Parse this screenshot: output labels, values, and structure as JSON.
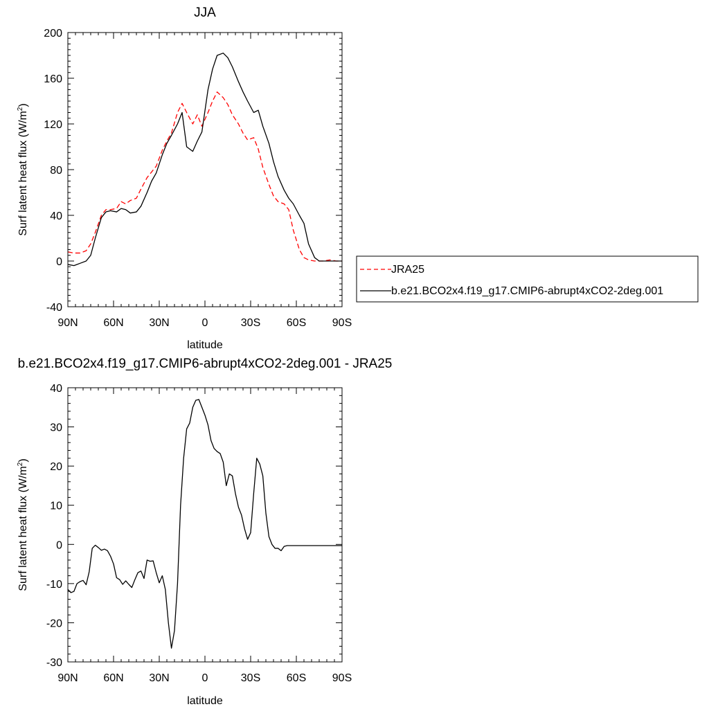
{
  "chart_data": [
    {
      "type": "line",
      "title": "JJA",
      "xlabel": "latitude",
      "ylabel": "Surf latent heat flux (W/m",
      "ylabel_sup": "2",
      "ylabel_tail": ")",
      "xlim": [
        90,
        -90
      ],
      "ylim": [
        -40,
        200
      ],
      "xticks": [
        {
          "v": 90,
          "label": "90N"
        },
        {
          "v": 60,
          "label": "60N"
        },
        {
          "v": 30,
          "label": "30N"
        },
        {
          "v": 0,
          "label": "0"
        },
        {
          "v": -30,
          "label": "30S"
        },
        {
          "v": -60,
          "label": "60S"
        },
        {
          "v": -90,
          "label": "90S"
        }
      ],
      "yticks": [
        -40,
        0,
        40,
        80,
        120,
        160,
        200
      ],
      "legend_position": "right",
      "series": [
        {
          "name": "JRA25",
          "color": "#ff0000",
          "dash": "dashed",
          "x": [
            90,
            86,
            82,
            78,
            75,
            72,
            68,
            65,
            62,
            58,
            55,
            52,
            49,
            45,
            42,
            38,
            35,
            32,
            28,
            25,
            22,
            18,
            15,
            12,
            8,
            5,
            2,
            -2,
            -5,
            -8,
            -12,
            -15,
            -18,
            -22,
            -25,
            -28,
            -32,
            -35,
            -38,
            -42,
            -45,
            -48,
            -52,
            -55,
            -58,
            -62,
            -65,
            -68,
            -72,
            -75,
            -78,
            -82,
            -86,
            -90
          ],
          "y": [
            8,
            7,
            7,
            9,
            15,
            25,
            40,
            45,
            45,
            46,
            52,
            50,
            53,
            55,
            63,
            73,
            78,
            83,
            97,
            105,
            112,
            130,
            138,
            130,
            120,
            128,
            118,
            130,
            140,
            148,
            143,
            137,
            128,
            120,
            112,
            106,
            108,
            98,
            82,
            67,
            57,
            52,
            50,
            45,
            27,
            10,
            3,
            1,
            0,
            0,
            0,
            1,
            0,
            0
          ]
        },
        {
          "name": "b.e21.BCO2x4.f19_g17.CMIP6-abrupt4xCO2-2deg.001",
          "color": "#000000",
          "dash": "solid",
          "x": [
            90,
            86,
            82,
            78,
            75,
            72,
            68,
            65,
            62,
            58,
            55,
            52,
            49,
            45,
            42,
            38,
            35,
            32,
            28,
            25,
            22,
            18,
            15,
            12,
            8,
            5,
            2,
            -2,
            -5,
            -8,
            -12,
            -15,
            -18,
            -22,
            -25,
            -28,
            -32,
            -35,
            -38,
            -42,
            -45,
            -48,
            -52,
            -55,
            -58,
            -62,
            -65,
            -68,
            -72,
            -75,
            -78,
            -82,
            -86,
            -90
          ],
          "y": [
            -3,
            -4,
            -2,
            0,
            5,
            20,
            38,
            43,
            44,
            43,
            46,
            45,
            42,
            43,
            48,
            60,
            70,
            77,
            93,
            103,
            110,
            120,
            130,
            100,
            96,
            105,
            113,
            150,
            168,
            180,
            182,
            178,
            170,
            157,
            148,
            140,
            130,
            132,
            118,
            103,
            87,
            74,
            62,
            55,
            50,
            40,
            33,
            15,
            3,
            0,
            0,
            0,
            0,
            0
          ]
        }
      ]
    },
    {
      "type": "line",
      "title": "b.e21.BCO2x4.f19_g17.CMIP6-abrupt4xCO2-2deg.001 - JRA25",
      "xlabel": "latitude",
      "ylabel": "Surf latent heat flux (W/m",
      "ylabel_sup": "2",
      "ylabel_tail": ")",
      "xlim": [
        90,
        -90
      ],
      "ylim": [
        -30,
        40
      ],
      "xticks": [
        {
          "v": 90,
          "label": "90N"
        },
        {
          "v": 60,
          "label": "60N"
        },
        {
          "v": 30,
          "label": "30N"
        },
        {
          "v": 0,
          "label": "0"
        },
        {
          "v": -30,
          "label": "30S"
        },
        {
          "v": -60,
          "label": "60S"
        },
        {
          "v": -90,
          "label": "90S"
        }
      ],
      "yticks": [
        -30,
        -20,
        -10,
        0,
        10,
        20,
        30,
        40
      ],
      "series": [
        {
          "color": "#000000",
          "dash": "solid",
          "x": [
            90,
            88,
            86,
            84,
            82,
            80,
            78,
            76,
            74,
            72,
            70,
            68,
            66,
            64,
            62,
            60,
            58,
            56,
            54,
            52,
            50,
            48,
            46,
            44,
            42,
            40,
            38,
            36,
            34,
            32,
            30,
            28,
            26,
            24,
            22,
            20,
            18,
            16,
            14,
            12,
            10,
            8,
            6,
            4,
            2,
            0,
            -2,
            -4,
            -6,
            -8,
            -10,
            -12,
            -14,
            -16,
            -18,
            -20,
            -22,
            -24,
            -26,
            -28,
            -30,
            -32,
            -34,
            -36,
            -38,
            -40,
            -42,
            -44,
            -46,
            -48,
            -50,
            -52,
            -54,
            -56,
            -58,
            -60,
            -62,
            -64,
            -66,
            -68,
            -70,
            -72,
            -74,
            -76,
            -78,
            -80,
            -82,
            -84,
            -86,
            -88,
            -90
          ],
          "y": [
            -11.5,
            -12.3,
            -12,
            -10,
            -9.5,
            -9.2,
            -10.3,
            -7,
            -1,
            -0.2,
            -0.8,
            -1.5,
            -1.2,
            -1.6,
            -3,
            -5,
            -8.5,
            -9,
            -10.2,
            -9.3,
            -10.2,
            -11,
            -9,
            -7.2,
            -6.8,
            -8.7,
            -4,
            -4.3,
            -4.2,
            -7.2,
            -9.8,
            -8,
            -11.5,
            -20,
            -26.5,
            -22,
            -10,
            10,
            22,
            29.5,
            31,
            35,
            36.8,
            37,
            35,
            33,
            30.5,
            26.5,
            24.5,
            23.7,
            23.2,
            21,
            15,
            18,
            17.5,
            13,
            9.5,
            7.5,
            4,
            1.3,
            3,
            13,
            22,
            20.5,
            17.5,
            8,
            2,
            0,
            -1,
            -1,
            -1.6,
            -0.5,
            -0.3,
            -0.3,
            -0.3,
            -0.3,
            -0.3,
            -0.3,
            -0.3,
            -0.3,
            -0.3,
            -0.3,
            -0.3,
            -0.3,
            -0.3,
            -0.3,
            -0.3,
            -0.3,
            -0.3,
            -0.3,
            -0.3
          ]
        }
      ]
    }
  ]
}
